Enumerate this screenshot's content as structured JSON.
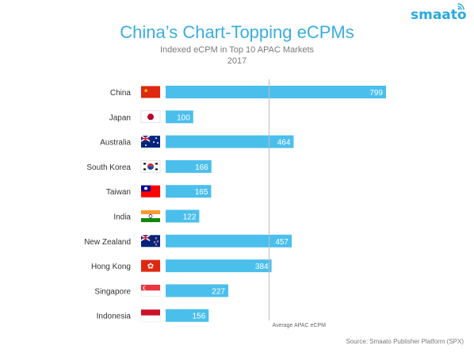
{
  "brand": {
    "name": "smaato",
    "color": "#2aa9de"
  },
  "chart_data": {
    "type": "bar",
    "orientation": "horizontal",
    "title": "China’s Chart-Topping eCPMs",
    "subtitle": "Indexed eCPM in Top 10 APAC Markets",
    "subtitle2": "2017",
    "categories": [
      "China",
      "Japan",
      "Australia",
      "South Korea",
      "Taiwan",
      "India",
      "New Zealand",
      "Hong Kong",
      "Singapore",
      "Indonesia"
    ],
    "values": [
      799,
      100,
      464,
      166,
      165,
      122,
      457,
      384,
      227,
      156
    ],
    "flags": [
      "china-flag-icon",
      "japan-flag-icon",
      "australia-flag-icon",
      "south-korea-flag-icon",
      "taiwan-flag-icon",
      "india-flag-icon",
      "new-zealand-flag-icon",
      "hong-kong-flag-icon",
      "singapore-flag-icon",
      "indonesia-flag-icon"
    ],
    "reference_line": {
      "label": "Average APAC eCPM",
      "value": 375
    },
    "bar_color": "#4bbfec",
    "title_color": "#3aaede",
    "xlim": [
      0,
      810
    ],
    "grid": false,
    "source": "Source: Smaato Publisher Platform (SPX)"
  }
}
